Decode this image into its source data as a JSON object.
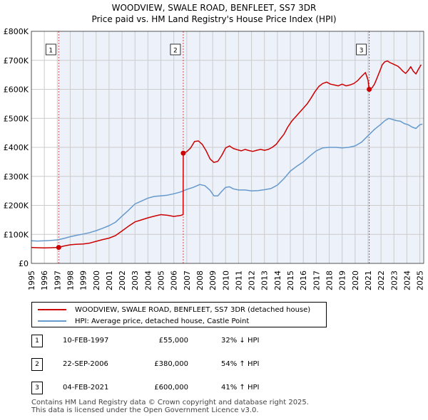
{
  "chart_data": {
    "type": "line",
    "title": "WOODVIEW, SWALE ROAD, BENFLEET, SS7 3DR",
    "subtitle": "Price paid vs. HM Land Registry's House Price Index (HPI)",
    "ylim": [
      0,
      800000
    ],
    "xlim": [
      1995,
      2025.3
    ],
    "y_ticks": [
      0,
      100000,
      200000,
      300000,
      400000,
      500000,
      600000,
      700000,
      800000
    ],
    "y_tick_labels": [
      "£0",
      "£100K",
      "£200K",
      "£300K",
      "£400K",
      "£500K",
      "£600K",
      "£700K",
      "£800K"
    ],
    "x_ticks": [
      1995,
      1996,
      1997,
      1998,
      1999,
      2000,
      2001,
      2002,
      2003,
      2004,
      2005,
      2006,
      2007,
      2008,
      2009,
      2010,
      2011,
      2012,
      2013,
      2014,
      2015,
      2016,
      2017,
      2018,
      2019,
      2020,
      2021,
      2022,
      2023,
      2024,
      2025
    ],
    "x_tick_labels": [
      "1995",
      "1996",
      "1997",
      "1998",
      "1999",
      "2000",
      "2001",
      "2002",
      "2003",
      "2004",
      "2005",
      "2006",
      "2007",
      "2008",
      "2009",
      "2010",
      "2011",
      "2012",
      "2013",
      "2014",
      "2015",
      "2016",
      "2017",
      "2018",
      "2019",
      "2020",
      "2021",
      "2022",
      "2023",
      "2024",
      "2025"
    ],
    "grid": true,
    "series": [
      {
        "name": "WOODVIEW, SWALE ROAD, BENFLEET, SS7 3DR (detached house)",
        "color": "#cc0000",
        "x": [
          1995.0,
          1995.5,
          1996.0,
          1996.5,
          1997.11,
          1997.5,
          1998.0,
          1998.5,
          1999.0,
          1999.5,
          2000.0,
          2000.5,
          2001.0,
          2001.5,
          2002.0,
          2002.5,
          2003.0,
          2003.5,
          2004.0,
          2004.5,
          2005.0,
          2005.5,
          2006.0,
          2006.5,
          2006.72,
          2006.73,
          2007.0,
          2007.3,
          2007.6,
          2007.9,
          2008.2,
          2008.5,
          2008.8,
          2009.1,
          2009.4,
          2009.7,
          2010.0,
          2010.3,
          2010.6,
          2010.9,
          2011.2,
          2011.5,
          2011.8,
          2012.1,
          2012.4,
          2012.7,
          2013.0,
          2013.3,
          2013.6,
          2013.9,
          2014.2,
          2014.5,
          2014.8,
          2015.1,
          2015.4,
          2015.7,
          2016.0,
          2016.3,
          2016.6,
          2016.9,
          2017.2,
          2017.5,
          2017.8,
          2018.1,
          2018.4,
          2018.7,
          2019.0,
          2019.3,
          2019.6,
          2019.9,
          2020.2,
          2020.5,
          2020.8,
          2021.0,
          2021.09,
          2021.3,
          2021.5,
          2021.7,
          2021.9,
          2022.1,
          2022.3,
          2022.5,
          2022.7,
          2022.9,
          2023.1,
          2023.3,
          2023.5,
          2023.7,
          2023.9,
          2024.1,
          2024.3,
          2024.5,
          2024.7,
          2024.9,
          2025.1
        ],
        "values": [
          55000,
          54000,
          53500,
          54000,
          55000,
          60000,
          64000,
          66000,
          67000,
          70000,
          76000,
          82000,
          87000,
          96000,
          112000,
          128000,
          143000,
          150000,
          157000,
          163000,
          168000,
          166000,
          162000,
          165000,
          168000,
          380000,
          385000,
          398000,
          420000,
          422000,
          410000,
          388000,
          360000,
          348000,
          352000,
          372000,
          398000,
          405000,
          396000,
          392000,
          388000,
          393000,
          389000,
          386000,
          390000,
          393000,
          390000,
          393000,
          400000,
          410000,
          428000,
          445000,
          470000,
          490000,
          505000,
          520000,
          535000,
          550000,
          570000,
          592000,
          610000,
          620000,
          625000,
          618000,
          615000,
          612000,
          618000,
          612000,
          615000,
          620000,
          630000,
          645000,
          658000,
          632000,
          600000,
          605000,
          618000,
          640000,
          662000,
          685000,
          695000,
          698000,
          692000,
          688000,
          684000,
          680000,
          672000,
          662000,
          655000,
          665000,
          678000,
          662000,
          653000,
          670000,
          685000
        ]
      },
      {
        "name": "HPI: Average price, detached house, Castle Point",
        "color": "#6699cc",
        "x": [
          1995.0,
          1995.5,
          1996.0,
          1996.5,
          1997.0,
          1997.5,
          1998.0,
          1998.5,
          1999.0,
          1999.5,
          2000.0,
          2000.5,
          2001.0,
          2001.5,
          2002.0,
          2002.5,
          2003.0,
          2003.5,
          2004.0,
          2004.5,
          2005.0,
          2005.5,
          2006.0,
          2006.5,
          2007.0,
          2007.5,
          2008.0,
          2008.4,
          2008.8,
          2009.1,
          2009.4,
          2009.7,
          2010.0,
          2010.3,
          2010.6,
          2011.0,
          2011.5,
          2012.0,
          2012.5,
          2013.0,
          2013.5,
          2014.0,
          2014.5,
          2015.0,
          2015.5,
          2016.0,
          2016.5,
          2017.0,
          2017.5,
          2018.0,
          2018.5,
          2019.0,
          2019.5,
          2020.0,
          2020.5,
          2021.0,
          2021.5,
          2022.0,
          2022.3,
          2022.6,
          2022.9,
          2023.2,
          2023.5,
          2023.8,
          2024.1,
          2024.4,
          2024.7,
          2025.0,
          2025.2
        ],
        "values": [
          78000,
          77000,
          78000,
          79000,
          81000,
          86000,
          92000,
          97000,
          101000,
          106000,
          113000,
          121000,
          130000,
          142000,
          163000,
          183000,
          205000,
          215000,
          225000,
          231000,
          233000,
          235000,
          240000,
          246000,
          255000,
          262000,
          272000,
          268000,
          252000,
          233000,
          233000,
          248000,
          262000,
          264000,
          257000,
          253000,
          253000,
          250000,
          251000,
          254000,
          258000,
          270000,
          292000,
          318000,
          335000,
          350000,
          370000,
          388000,
          398000,
          400000,
          400000,
          398000,
          400000,
          405000,
          418000,
          440000,
          462000,
          480000,
          492000,
          500000,
          496000,
          492000,
          490000,
          482000,
          478000,
          470000,
          465000,
          478000,
          480000
        ]
      }
    ],
    "annotations": [
      {
        "label": "1",
        "x": 1997.11,
        "y": 55000
      },
      {
        "label": "2",
        "x": 2006.73,
        "y": 380000
      },
      {
        "label": "3",
        "x": 2021.09,
        "y": 600000
      }
    ]
  },
  "legend": {
    "entries": [
      {
        "label": "WOODVIEW, SWALE ROAD, BENFLEET, SS7 3DR (detached house)",
        "color": "#cc0000"
      },
      {
        "label": "HPI: Average price, detached house, Castle Point",
        "color": "#6699cc"
      }
    ]
  },
  "sales": [
    {
      "num": "1",
      "date": "10-FEB-1997",
      "price": "£55,000",
      "hpi": "32% ↓ HPI"
    },
    {
      "num": "2",
      "date": "22-SEP-2006",
      "price": "£380,000",
      "hpi": "54% ↑ HPI"
    },
    {
      "num": "3",
      "date": "04-FEB-2021",
      "price": "£600,000",
      "hpi": "41% ↑ HPI"
    }
  ],
  "footer": {
    "line1": "Contains HM Land Registry data © Crown copyright and database right 2025.",
    "line2": "This data is licensed under the Open Government Licence v3.0."
  }
}
